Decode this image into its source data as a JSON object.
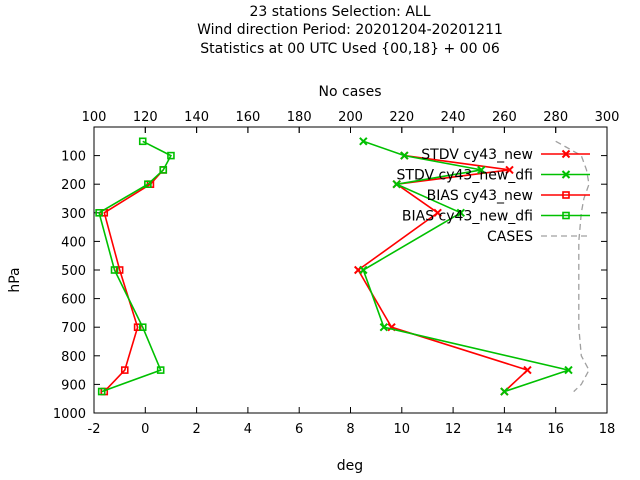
{
  "chart_data": {
    "type": "line",
    "title_lines": [
      "23 stations Selection: ALL",
      "Wind direction  Period: 20201204-20201211",
      "Statistics at 00 UTC  Used {00,18} + 00 06"
    ],
    "xlabel": "deg",
    "x2label": "No cases",
    "ylabel": "hPa",
    "xlim": [
      -2,
      18
    ],
    "x2lim": [
      100,
      300
    ],
    "ylim": [
      1000,
      0
    ],
    "x_ticks": [
      "-2",
      "0",
      "2",
      "4",
      "6",
      "8",
      "10",
      "12",
      "14",
      "16",
      "18"
    ],
    "x2_ticks": [
      "100",
      "120",
      "140",
      "160",
      "180",
      "200",
      "220",
      "240",
      "260",
      "280",
      "300"
    ],
    "y_ticks": [
      "100",
      "200",
      "300",
      "400",
      "500",
      "600",
      "700",
      "800",
      "900",
      "1000"
    ],
    "grid": false,
    "legend_position": "top-right",
    "series": [
      {
        "name": "STDV cy43_new",
        "color": "#ff0000",
        "marker": "x",
        "points": [
          [
            10.1,
            100
          ],
          [
            14.2,
            150
          ],
          [
            9.8,
            200
          ],
          [
            11.4,
            300
          ],
          [
            8.3,
            500
          ],
          [
            9.6,
            700
          ],
          [
            14.9,
            850
          ],
          [
            14.0,
            925
          ]
        ]
      },
      {
        "name": "STDV cy43_new_dfi",
        "color": "#00c000",
        "marker": "x",
        "points": [
          [
            8.5,
            50
          ],
          [
            10.1,
            100
          ],
          [
            13.1,
            150
          ],
          [
            9.8,
            200
          ],
          [
            12.3,
            300
          ],
          [
            8.5,
            500
          ],
          [
            9.3,
            700
          ],
          [
            16.5,
            850
          ],
          [
            14.0,
            925
          ]
        ]
      },
      {
        "name": "BIAS cy43_new",
        "color": "#ff0000",
        "marker": "square",
        "points": [
          [
            0.7,
            150
          ],
          [
            0.2,
            200
          ],
          [
            -1.6,
            300
          ],
          [
            -1.0,
            500
          ],
          [
            -0.3,
            700
          ],
          [
            -0.8,
            850
          ],
          [
            -1.6,
            925
          ]
        ]
      },
      {
        "name": "BIAS cy43_new_dfi",
        "color": "#00c000",
        "marker": "square",
        "points": [
          [
            -0.1,
            50
          ],
          [
            1.0,
            100
          ],
          [
            0.7,
            150
          ],
          [
            0.1,
            200
          ],
          [
            -1.8,
            300
          ],
          [
            -1.2,
            500
          ],
          [
            -0.1,
            700
          ],
          [
            0.6,
            850
          ],
          [
            -1.7,
            925
          ]
        ]
      },
      {
        "name": "CASES",
        "color": "#a0a0a0",
        "marker": "none",
        "dashed": true,
        "axis": "x2",
        "points": [
          [
            280,
            50
          ],
          [
            284,
            70
          ],
          [
            290,
            100
          ],
          [
            292,
            150
          ],
          [
            293,
            200
          ],
          [
            291,
            250
          ],
          [
            290,
            300
          ],
          [
            289,
            400
          ],
          [
            289,
            500
          ],
          [
            289,
            600
          ],
          [
            289,
            700
          ],
          [
            290,
            800
          ],
          [
            293,
            850
          ],
          [
            290,
            900
          ],
          [
            287,
            925
          ]
        ]
      }
    ]
  }
}
